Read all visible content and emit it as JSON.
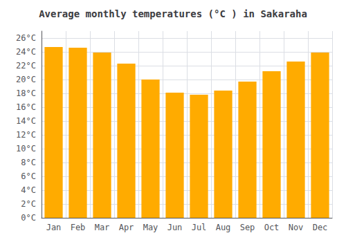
{
  "chart_data": {
    "type": "bar",
    "title": "Average monthly temperatures (°C ) in Sakaraha",
    "categories": [
      "Jan",
      "Feb",
      "Mar",
      "Apr",
      "May",
      "Jun",
      "Jul",
      "Aug",
      "Sep",
      "Oct",
      "Nov",
      "Dec"
    ],
    "values": [
      24.7,
      24.6,
      23.9,
      22.3,
      20.0,
      18.1,
      17.8,
      18.4,
      19.7,
      21.2,
      22.6,
      23.9
    ],
    "color": "#FFAB00",
    "ylim": [
      0,
      27
    ],
    "yticks": [
      {
        "value": 0,
        "label": "0°C"
      },
      {
        "value": 2,
        "label": "2°C"
      },
      {
        "value": 4,
        "label": "4°C"
      },
      {
        "value": 6,
        "label": "6°C"
      },
      {
        "value": 8,
        "label": "8°C"
      },
      {
        "value": 10,
        "label": "10°C"
      },
      {
        "value": 12,
        "label": "12°C"
      },
      {
        "value": 14,
        "label": "14°C"
      },
      {
        "value": 16,
        "label": "16°C"
      },
      {
        "value": 18,
        "label": "18°C"
      },
      {
        "value": 20,
        "label": "20°C"
      },
      {
        "value": 22,
        "label": "22°C"
      },
      {
        "value": 24,
        "label": "24°C"
      },
      {
        "value": 26,
        "label": "26°C"
      }
    ],
    "grid": true
  }
}
